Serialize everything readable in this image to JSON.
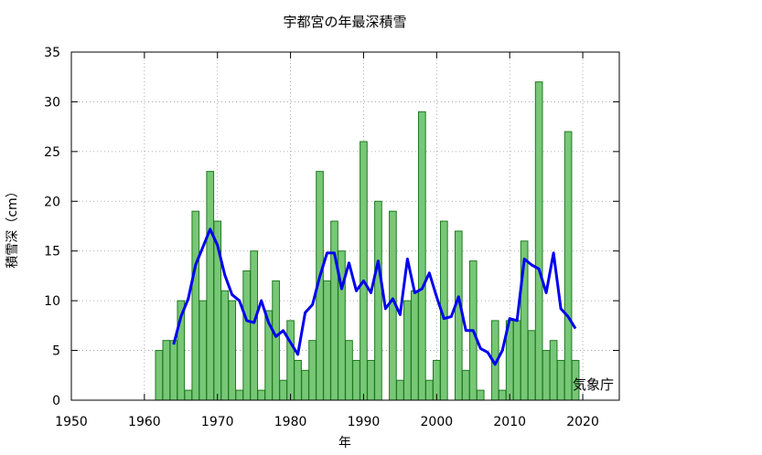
{
  "chart_data": {
    "type": "bar",
    "title": "宇都宮の年最深積雪",
    "xlabel": "年",
    "ylabel": "積雪深（cm）",
    "credit": "気象庁",
    "xlim": [
      1950,
      2025
    ],
    "ylim": [
      0,
      35
    ],
    "xticks": [
      1950,
      1960,
      1970,
      1980,
      1990,
      2000,
      2010,
      2020
    ],
    "yticks": [
      0,
      5,
      10,
      15,
      20,
      25,
      30,
      35
    ],
    "grid": true,
    "colors": {
      "bar_fill": "#77c777",
      "bar_stroke": "#1f7a1f",
      "line": "#0000ee"
    },
    "series": [
      {
        "type": "bar",
        "x": [
          1962,
          1963,
          1964,
          1965,
          1966,
          1967,
          1968,
          1969,
          1970,
          1971,
          1972,
          1973,
          1974,
          1975,
          1976,
          1977,
          1978,
          1979,
          1980,
          1981,
          1982,
          1983,
          1984,
          1985,
          1986,
          1987,
          1988,
          1989,
          1990,
          1991,
          1992,
          1993,
          1994,
          1995,
          1996,
          1997,
          1998,
          1999,
          2000,
          2001,
          2002,
          2003,
          2004,
          2005,
          2006,
          2007,
          2008,
          2009,
          2010,
          2011,
          2012,
          2013,
          2014,
          2015,
          2016,
          2017,
          2018,
          2019
        ],
        "values": [
          5,
          6,
          6,
          10,
          1,
          19,
          10,
          23,
          18,
          11,
          10,
          1,
          13,
          15,
          1,
          9,
          12,
          2,
          8,
          4,
          3,
          6,
          23,
          12,
          18,
          15,
          6,
          4,
          26,
          4,
          20,
          0,
          19,
          2,
          10,
          11,
          29,
          2,
          4,
          18,
          0,
          17,
          3,
          14,
          1,
          0,
          8,
          1,
          8,
          8,
          16,
          7,
          32,
          5,
          6,
          4,
          27,
          4
        ]
      },
      {
        "type": "line",
        "x": [
          1964,
          1965,
          1966,
          1967,
          1968,
          1969,
          1970,
          1971,
          1972,
          1973,
          1974,
          1975,
          1976,
          1977,
          1978,
          1979,
          1980,
          1981,
          1982,
          1983,
          1984,
          1985,
          1986,
          1987,
          1988,
          1989,
          1990,
          1991,
          1992,
          1993,
          1994,
          1995,
          1996,
          1997,
          1998,
          1999,
          2000,
          2001,
          2002,
          2003,
          2004,
          2005,
          2006,
          2007,
          2008,
          2009,
          2010,
          2011,
          2012,
          2013,
          2014,
          2015,
          2016,
          2017,
          2018,
          2019
        ],
        "values": [
          5.6,
          8.4,
          10.2,
          13.6,
          15.4,
          17.2,
          15.6,
          12.6,
          10.6,
          10,
          8,
          7.8,
          10,
          7.8,
          6.4,
          7,
          5.8,
          4.6,
          8.8,
          9.6,
          12.4,
          14.8,
          14.8,
          11.2,
          13.8,
          11,
          12,
          10.8,
          14,
          9.2,
          10.2,
          8.6,
          14.2,
          10.8,
          11.2,
          12.8,
          10.4,
          8.2,
          8.4,
          10.4,
          7,
          7,
          5.2,
          4.8,
          3.6,
          5,
          8.2,
          8,
          14.2,
          13.6,
          13.2,
          10.8,
          14.8,
          9.2,
          8.4,
          7.2
        ]
      }
    ]
  }
}
